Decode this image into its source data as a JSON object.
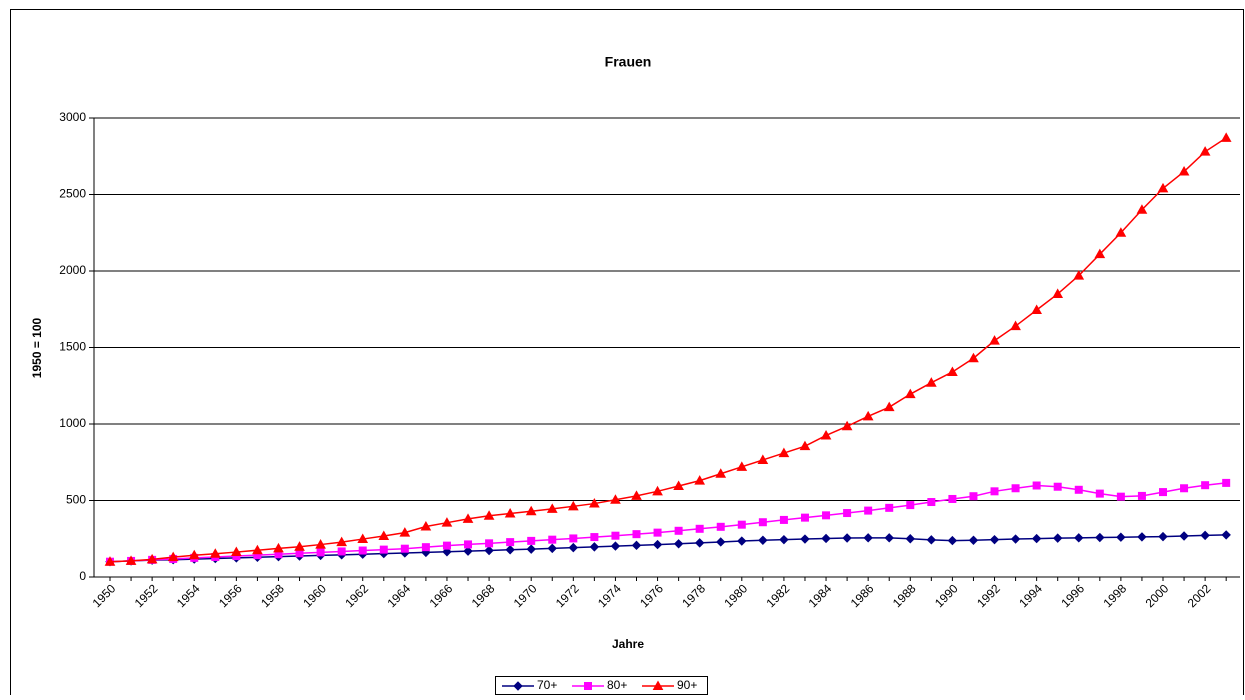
{
  "chart_data": {
    "type": "line",
    "title": "Frauen",
    "x_label": "Jahre",
    "y_label": "1950 = 100",
    "categories": [
      "1950",
      null,
      "1952",
      null,
      "1954",
      null,
      "1956",
      null,
      "1958",
      null,
      "1960",
      null,
      "1962",
      null,
      "1964",
      null,
      "1966",
      null,
      "1968",
      null,
      "1970",
      null,
      "1972",
      null,
      "1974",
      null,
      "1976",
      null,
      "1978",
      null,
      "1980",
      null,
      "1982",
      null,
      "1984",
      null,
      "1986",
      null,
      "1988",
      null,
      "1990",
      null,
      "1992",
      null,
      "1994",
      null,
      "1996",
      null,
      "1998",
      null,
      "2000",
      null,
      "2002",
      null
    ],
    "series": [
      {
        "name": "70+",
        "color": "#000080",
        "marker": "diamond",
        "values": [
          100,
          105,
          110,
          113,
          117,
          121,
          125,
          129,
          133,
          137,
          141,
          145,
          149,
          153,
          157,
          161,
          165,
          169,
          173,
          178,
          182,
          187,
          192,
          197,
          202,
          207,
          212,
          217,
          223,
          229,
          235,
          240,
          244,
          248,
          252,
          255,
          256,
          256,
          250,
          243,
          238,
          240,
          244,
          248,
          251,
          254,
          256,
          258,
          260,
          262,
          264,
          268,
          272,
          275
        ]
      },
      {
        "name": "80+",
        "color": "#FF00FF",
        "marker": "square",
        "values": [
          100,
          105,
          112,
          118,
          125,
          131,
          137,
          143,
          149,
          155,
          161,
          167,
          173,
          179,
          185,
          195,
          205,
          213,
          220,
          228,
          236,
          244,
          252,
          261,
          270,
          280,
          290,
          302,
          315,
          328,
          342,
          358,
          373,
          388,
          403,
          418,
          434,
          452,
          470,
          490,
          510,
          528,
          560,
          580,
          598,
          590,
          570,
          545,
          525,
          530,
          555,
          580,
          600,
          615
        ]
      },
      {
        "name": "90+",
        "color": "#FF0000",
        "marker": "triangle",
        "values": [
          100,
          105,
          115,
          130,
          142,
          152,
          163,
          175,
          187,
          198,
          212,
          228,
          248,
          268,
          290,
          330,
          355,
          380,
          400,
          415,
          430,
          445,
          462,
          480,
          505,
          530,
          560,
          595,
          630,
          675,
          720,
          765,
          810,
          855,
          925,
          985,
          1050,
          1110,
          1195,
          1270,
          1340,
          1430,
          1545,
          1640,
          1745,
          1850,
          1970,
          2110,
          2250,
          2400,
          2540,
          2650,
          2780,
          2870
        ]
      }
    ],
    "ylim": [
      0,
      3000
    ],
    "yticks": [
      0,
      500,
      1000,
      1500,
      2000,
      2500,
      3000
    ],
    "grid": true,
    "legend": "bottom"
  }
}
